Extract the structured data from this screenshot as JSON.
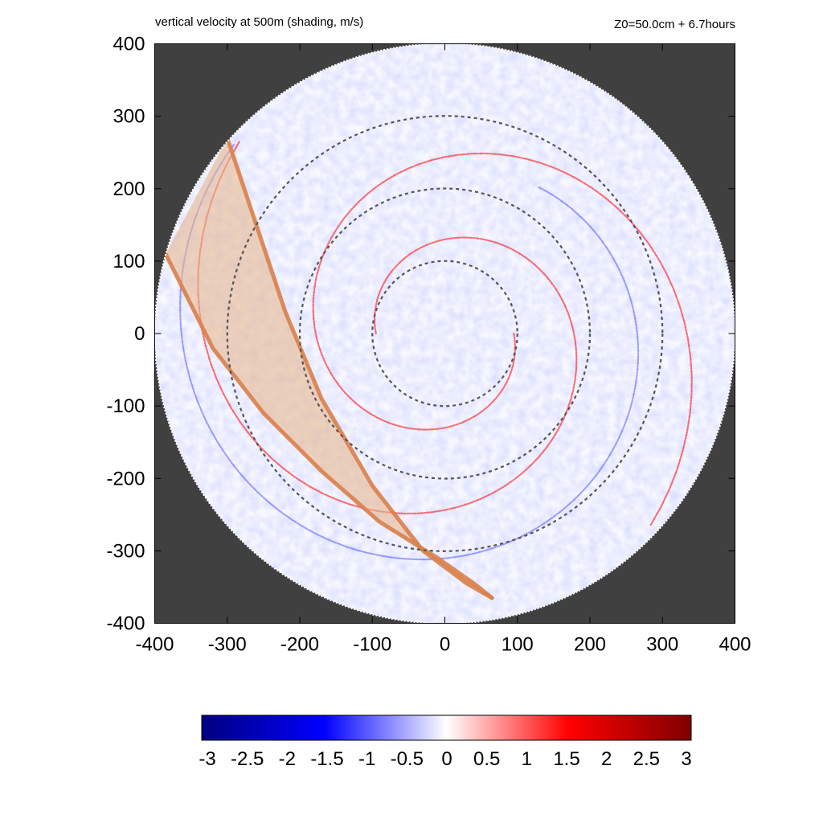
{
  "header": {
    "title": "vertical velocity at 500m (shading, m/s)",
    "run_info": "Z0=50.0cm  + 6.7hours"
  },
  "colors": {
    "outside_domain": "#404040",
    "negative_max": "#00007f",
    "negative_mid": "#0000ff",
    "zero": "#ffffff",
    "positive_mid": "#ff0000",
    "positive_max": "#7f0000",
    "swath_fill": "#e8b890",
    "swath_edge": "#d9804a",
    "ring_color": "#555555"
  },
  "chart_data": {
    "type": "heatmap",
    "title": "vertical velocity at 500m (shading, m/s)",
    "xlabel": "",
    "ylabel": "",
    "xlim": [
      -400,
      400
    ],
    "ylim": [
      -400,
      400
    ],
    "xticks": [
      "-400",
      "-300",
      "-200",
      "-100",
      "0",
      "100",
      "200",
      "300",
      "400"
    ],
    "yticks": [
      "400",
      "300",
      "200",
      "100",
      "0",
      "-100",
      "-200",
      "-300",
      "-400"
    ],
    "domain_radius": 400,
    "range_rings": [
      100,
      200,
      300
    ],
    "colorbar": {
      "min": -3,
      "max": 3,
      "ticks": [
        "-3",
        "-2.5",
        "-2",
        "-1.5",
        "-1",
        "-0.5",
        "0",
        "0.5",
        "1",
        "1.5",
        "2",
        "2.5",
        "3"
      ]
    },
    "spiral_bands": [
      {
        "r0": 95,
        "theta0": 0,
        "growth": 0.2,
        "turns": 3.0,
        "sign": 1
      },
      {
        "r0": 95,
        "theta0": 3.14,
        "growth": 0.2,
        "turns": 3.0,
        "sign": 1
      },
      {
        "r0": 240,
        "theta0": 1.0,
        "growth": 0.1,
        "turns": 1.8,
        "sign": -1
      }
    ],
    "swath": {
      "upper_edge": [
        [
          -300,
          270
        ],
        [
          -260,
          150
        ],
        [
          -220,
          30
        ],
        [
          -170,
          -90
        ],
        [
          -100,
          -210
        ],
        [
          -30,
          -300
        ],
        [
          30,
          -345
        ],
        [
          65,
          -365
        ]
      ],
      "lower_edge": [
        [
          -385,
          110
        ],
        [
          -320,
          -20
        ],
        [
          -250,
          -110
        ],
        [
          -170,
          -190
        ],
        [
          -90,
          -260
        ],
        [
          -10,
          -310
        ],
        [
          40,
          -345
        ],
        [
          65,
          -365
        ]
      ]
    }
  }
}
